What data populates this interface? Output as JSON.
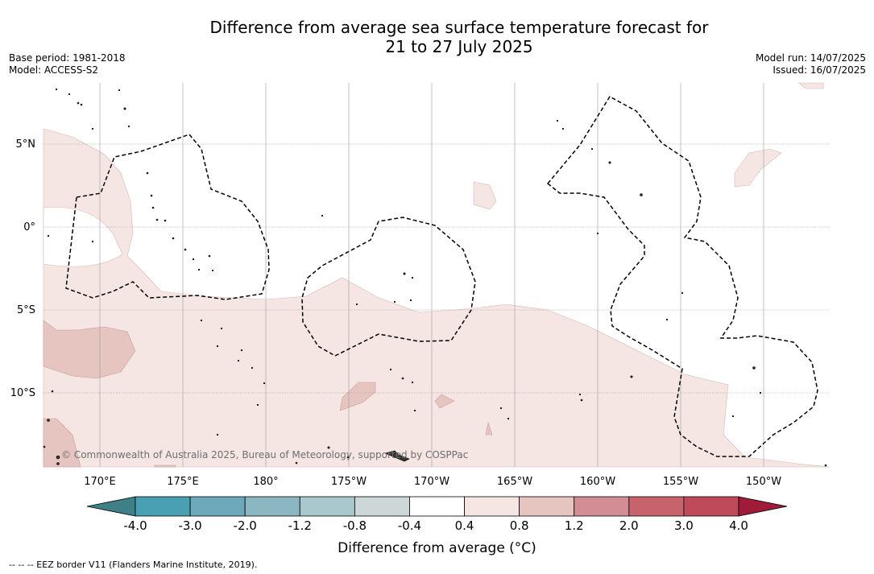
{
  "title_line1": "Difference from average sea surface temperature forecast for",
  "title_line2": "21 to 27 July 2025",
  "base_period": "Base period: 1981-2018",
  "model": "Model: ACCESS-S2",
  "model_run": "Model run: 14/07/2025",
  "issued": "Issued: 16/07/2025",
  "lat_labels": [
    "5°N",
    "0°",
    "5°S",
    "10°S"
  ],
  "lon_labels": [
    "170°E",
    "175°E",
    "180°",
    "175°W",
    "170°W",
    "165°W",
    "160°W",
    "155°W",
    "150°W"
  ],
  "copyright": "© Commonwealth of Australia 2025, Bureau of Meteorology, supported by COSPPac",
  "colorbar": {
    "label": "Difference from average (°C)",
    "ticks": [
      "-4.0",
      "-3.0",
      "-2.0",
      "-1.2",
      "-0.8",
      "-0.4",
      "0.4",
      "0.8",
      "1.2",
      "2.0",
      "3.0",
      "4.0"
    ],
    "colors": [
      "#3f7f86",
      "#4aa0b3",
      "#6ba9bb",
      "#8bb7c3",
      "#a9c8cd",
      "#cdd7d8",
      "#ffffff",
      "#f5e6e4",
      "#e6c4c0",
      "#d38e95",
      "#c7636c",
      "#bf4a5a",
      "#a01a3a"
    ]
  },
  "legend_note": "--  --  -- EEZ border V11 (Flanders Marine Institute, 2019)."
}
